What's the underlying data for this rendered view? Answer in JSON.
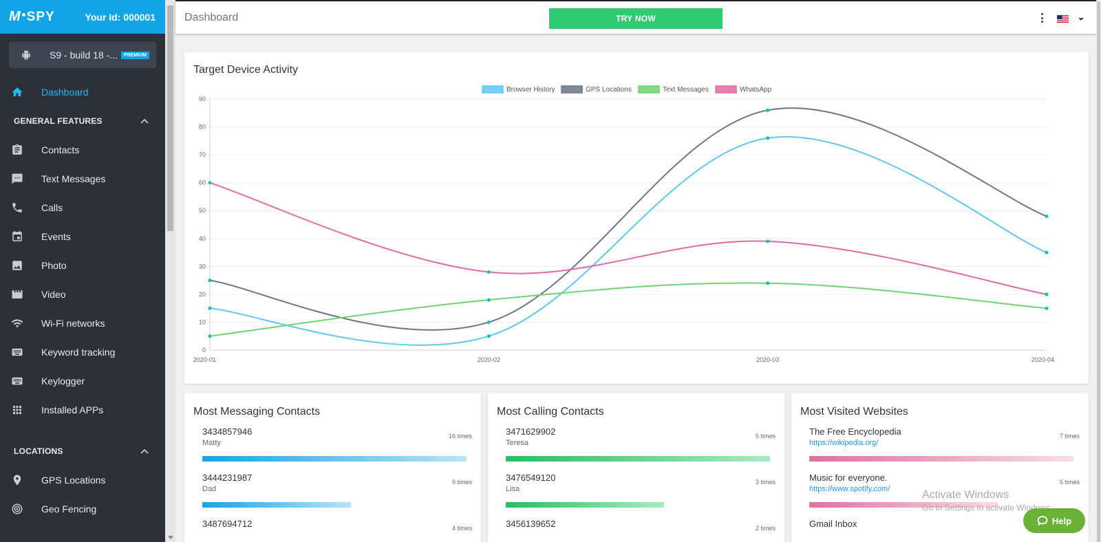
{
  "sidebar": {
    "logo_text": "SPY",
    "logo_prefix": "M",
    "your_id": "Your Id: 000001",
    "device": {
      "name": "S9 - build 18 -...",
      "badge": "PREMIUM"
    },
    "dashboard_label": "Dashboard",
    "section_general": "GENERAL FEATURES",
    "general_items": [
      {
        "label": "Contacts",
        "icon": "clipboard-icon"
      },
      {
        "label": "Text Messages",
        "icon": "message-icon"
      },
      {
        "label": "Calls",
        "icon": "phone-icon"
      },
      {
        "label": "Events",
        "icon": "calendar-icon"
      },
      {
        "label": "Photo",
        "icon": "image-icon"
      },
      {
        "label": "Video",
        "icon": "video-icon"
      },
      {
        "label": "Wi-Fi networks",
        "icon": "wifi-icon"
      },
      {
        "label": "Keyword tracking",
        "icon": "keyboard-icon"
      },
      {
        "label": "Keylogger",
        "icon": "keyboard-icon"
      },
      {
        "label": "Installed APPs",
        "icon": "apps-grid-icon"
      }
    ],
    "section_locations": "LOCATIONS",
    "location_items": [
      {
        "label": "GPS Locations",
        "icon": "location-pin-icon"
      },
      {
        "label": "Geo Fencing",
        "icon": "geofence-icon"
      }
    ]
  },
  "topbar": {
    "title": "Dashboard",
    "try_now": "TRY NOW",
    "language": "en-US"
  },
  "chart_card": {
    "title": "Target Device Activity"
  },
  "chart_data": {
    "type": "line",
    "title": "Target Device Activity",
    "x": [
      "2020-01",
      "2020-02",
      "2020-03",
      "2020-04"
    ],
    "ylim": [
      0,
      90
    ],
    "yticks": [
      "0",
      "10",
      "20",
      "30",
      "40",
      "50",
      "60",
      "70",
      "80",
      "90"
    ],
    "grid": true,
    "legend_position": "top",
    "series": [
      {
        "name": "Browser History",
        "color": "#5ec8f5",
        "values": [
          15,
          5,
          76,
          35
        ]
      },
      {
        "name": "GPS Locations",
        "color": "#6b7585",
        "values": [
          25,
          10,
          86,
          48
        ]
      },
      {
        "name": "Text Messages",
        "color": "#6fd46f",
        "values": [
          5,
          18,
          24,
          15
        ]
      },
      {
        "name": "WhatsApp",
        "color": "#e06aa3",
        "values": [
          60,
          28,
          39,
          20
        ]
      }
    ],
    "point_color": "#1ec0b4"
  },
  "messaging": {
    "title": "Most Messaging Contacts",
    "items": [
      {
        "number": "3434857946",
        "name": "Matty",
        "times": "16 times",
        "fraction": 1.0
      },
      {
        "number": "3444231987",
        "name": "Dad",
        "times": "9 times",
        "fraction": 0.5625
      },
      {
        "number": "3487694712",
        "name": "",
        "times": "4 times",
        "fraction": 0.25
      }
    ]
  },
  "calling": {
    "title": "Most Calling Contacts",
    "items": [
      {
        "number": "3471629902",
        "name": "Teresa",
        "times": "5 times",
        "fraction": 1.0
      },
      {
        "number": "3476549120",
        "name": "Lisa",
        "times": "3 times",
        "fraction": 0.6
      },
      {
        "number": "3456139652",
        "name": "",
        "times": "2 times",
        "fraction": 0.4
      }
    ]
  },
  "websites": {
    "title": "Most Visited Websites",
    "items": [
      {
        "name": "The Free Encyclopedia",
        "url": "https://wikipedia.org/",
        "times": "7 times",
        "fraction": 1.0
      },
      {
        "name": "Music for everyone.",
        "url": "https://www.spotify.com/",
        "times": "5 times",
        "fraction": 0.714
      },
      {
        "name": "Gmail Inbox",
        "url": "",
        "times": "",
        "fraction": 0.5
      }
    ]
  },
  "watermark": {
    "line1": "Activate Windows",
    "line2": "Go to Settings to activate Windows."
  },
  "help": {
    "label": "Help"
  }
}
